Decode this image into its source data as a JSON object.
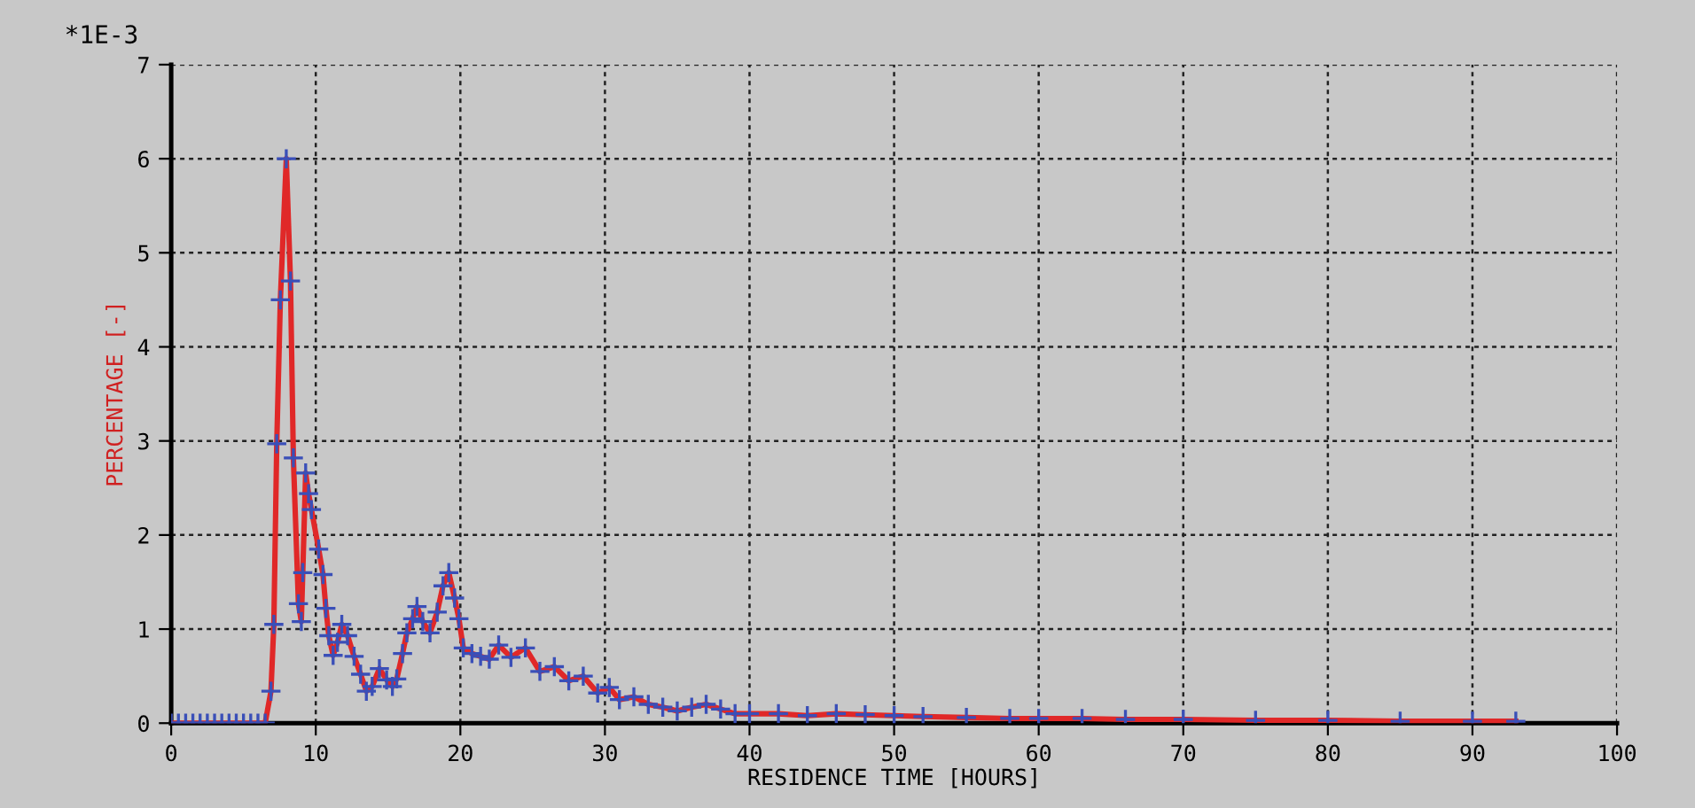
{
  "chart_data": {
    "type": "line",
    "xlabel": "RESIDENCE TIME [HOURS]",
    "ylabel": "PERCENTAGE [-]",
    "annotations": [
      "*1E-3"
    ],
    "x": [
      0,
      0.5,
      1,
      1.5,
      2,
      2.5,
      3,
      3.5,
      4,
      4.5,
      5,
      5.5,
      6,
      6.5,
      6.9,
      7.1,
      7.3,
      7.55,
      7.96,
      8.25,
      8.45,
      8.8,
      9.0,
      9.1,
      9.3,
      9.5,
      9.7,
      10.2,
      10.5,
      10.7,
      10.9,
      11.2,
      11.5,
      11.8,
      12.2,
      12.65,
      13.1,
      13.5,
      13.9,
      14.4,
      14.9,
      15.3,
      15.6,
      16.0,
      16.3,
      16.7,
      17.0,
      17.4,
      17.9,
      18.4,
      18.8,
      19.2,
      19.6,
      19.9,
      20.2,
      20.8,
      21.4,
      22.0,
      22.65,
      23.5,
      24.5,
      25.5,
      26.5,
      27.5,
      28.5,
      29.5,
      30.3,
      31,
      32,
      33,
      34,
      35,
      36,
      37,
      38,
      39,
      40,
      42,
      44,
      46,
      48,
      50,
      52,
      55,
      58,
      60,
      63,
      66,
      70,
      75,
      80,
      85,
      90,
      93
    ],
    "series": [
      {
        "color": "#e02828",
        "values": [
          0,
          0,
          0,
          0,
          0,
          0,
          0,
          0,
          0,
          0,
          0,
          0,
          0,
          0,
          0.34,
          1.05,
          2.97,
          4.5,
          6.0,
          4.7,
          2.82,
          1.27,
          1.08,
          1.6,
          2.66,
          2.44,
          2.27,
          1.85,
          1.58,
          1.22,
          0.93,
          0.72,
          0.86,
          1.05,
          0.93,
          0.71,
          0.52,
          0.34,
          0.39,
          0.58,
          0.46,
          0.39,
          0.47,
          0.74,
          0.96,
          1.11,
          1.24,
          1.08,
          0.96,
          1.18,
          1.46,
          1.6,
          1.33,
          1.11,
          0.8,
          0.74,
          0.71,
          0.68,
          0.83,
          0.7,
          0.8,
          0.55,
          0.6,
          0.45,
          0.5,
          0.32,
          0.38,
          0.25,
          0.28,
          0.2,
          0.17,
          0.13,
          0.17,
          0.2,
          0.15,
          0.1,
          0.1,
          0.1,
          0.08,
          0.1,
          0.09,
          0.08,
          0.07,
          0.06,
          0.05,
          0.05,
          0.05,
          0.04,
          0.04,
          0.03,
          0.03,
          0.02,
          0.02,
          0.02
        ]
      },
      {
        "type": "scatter",
        "color": "#3a4fb8",
        "marker": "cross",
        "values": [
          0,
          0,
          0,
          0,
          0,
          0,
          0,
          0,
          0,
          0,
          0,
          0,
          0,
          0,
          0.34,
          1.05,
          2.97,
          4.5,
          6.0,
          4.7,
          2.82,
          1.27,
          1.08,
          1.6,
          2.66,
          2.44,
          2.27,
          1.85,
          1.58,
          1.22,
          0.93,
          0.72,
          0.86,
          1.05,
          0.93,
          0.71,
          0.52,
          0.34,
          0.39,
          0.58,
          0.46,
          0.39,
          0.47,
          0.74,
          0.96,
          1.11,
          1.24,
          1.08,
          0.96,
          1.18,
          1.46,
          1.6,
          1.33,
          1.11,
          0.8,
          0.74,
          0.71,
          0.68,
          0.83,
          0.7,
          0.8,
          0.55,
          0.6,
          0.45,
          0.5,
          0.32,
          0.38,
          0.25,
          0.28,
          0.2,
          0.17,
          0.13,
          0.17,
          0.2,
          0.15,
          0.1,
          0.1,
          0.1,
          0.08,
          0.1,
          0.09,
          0.08,
          0.07,
          0.06,
          0.05,
          0.05,
          0.05,
          0.04,
          0.04,
          0.03,
          0.03,
          0.02,
          0.02,
          0.02
        ]
      }
    ],
    "xlim": [
      0,
      100
    ],
    "xticks": [
      0,
      10,
      20,
      30,
      40,
      50,
      60,
      70,
      80,
      90,
      100
    ],
    "ylim": [
      0,
      7
    ],
    "yticks": [
      0,
      1,
      2,
      3,
      4,
      5,
      6,
      7
    ],
    "grid": true
  }
}
